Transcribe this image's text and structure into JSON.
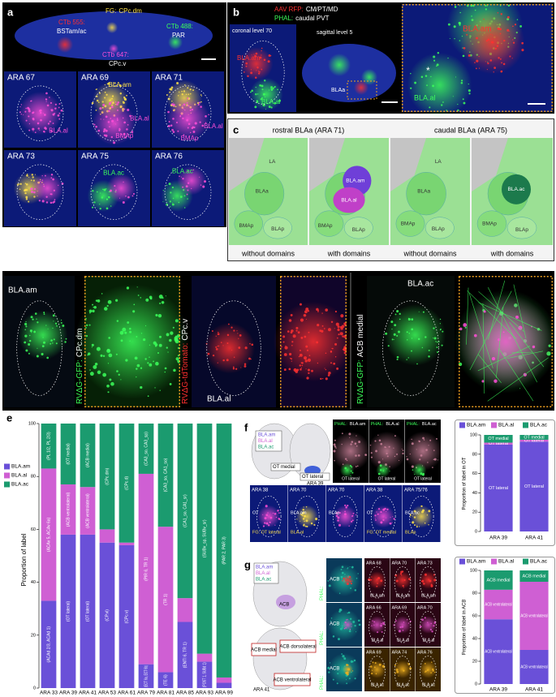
{
  "figure": {
    "a": {
      "letter": "a",
      "overview": [
        {
          "tracer": "CTb 555:",
          "target": "BSTam/ac"
        },
        {
          "tracer": "FG:",
          "target": "CPc.dm"
        },
        {
          "tracer": "CTb 488:",
          "target": "PAR"
        },
        {
          "tracer": "CTb 647:",
          "target": "CPc.v"
        }
      ],
      "tiles": [
        {
          "title": "ARA 67",
          "labels": [
            "BLA.al"
          ]
        },
        {
          "title": "ARA 69",
          "labels": [
            "BLA.am",
            "BLA.al",
            "BMAp"
          ]
        },
        {
          "title": "ARA 71",
          "labels": [
            "BLA.al",
            "BMAp"
          ]
        },
        {
          "title": "ARA 73",
          "labels": []
        },
        {
          "title": "ARA 75",
          "labels": [
            "BLA.ac"
          ]
        },
        {
          "title": "ARA 76",
          "labels": [
            "BLA.ac"
          ]
        }
      ]
    },
    "b": {
      "letter": "b",
      "legend": [
        {
          "tracer": "AAV RFP:",
          "target": "CM/PT/MD"
        },
        {
          "tracer": "PHAL:",
          "target": "caudal PVT"
        }
      ],
      "coronal": {
        "title": "coronal level 70",
        "labels": [
          "BLA.am",
          "BLA.al"
        ]
      },
      "sagittal": {
        "title": "sagittal level 5",
        "labels": [
          "BLAa"
        ]
      },
      "zoom": {
        "labels": [
          "BLA.am",
          "*",
          "BLA.al"
        ]
      }
    },
    "c": {
      "letter": "c",
      "groups": [
        {
          "title": "rostral BLAa (ARA 71)",
          "panels": [
            {
              "caption": "without domains",
              "labels": [
                "LA",
                "BLAa",
                "BMAp",
                "BLAp"
              ]
            },
            {
              "caption": "with domains",
              "labels": [
                "BLA.am",
                "BLA.al",
                "BMAp",
                "BLAp"
              ]
            }
          ]
        },
        {
          "title": "caudal BLAa (ARA 75)",
          "panels": [
            {
              "caption": "without domains",
              "labels": [
                "LA",
                "BLAa",
                "BMAp",
                "BLAp"
              ]
            },
            {
              "caption": "with domains",
              "labels": [
                "BLA.ac",
                "BMAp",
                "BLAp"
              ]
            }
          ]
        }
      ]
    },
    "d": {
      "letter": "d",
      "views": [
        {
          "tracer": "RVΔG-GFP:",
          "target": "CPc.dm",
          "region": "BLA.am"
        },
        {
          "tracer": "RVΔG-tdTomato:",
          "target": "CPc.v",
          "region": "BLA.al"
        },
        {
          "tracer": "RVΔG-GFP:",
          "target": "ACB medial",
          "region": "BLA.ac"
        }
      ]
    },
    "f": {
      "atlas_labels": [
        "BLA.am",
        "BLA.al",
        "BLA.ac",
        "OT medial",
        "OT lateral",
        "ARA 39"
      ],
      "tiles": [
        {
          "tracer": "PHAL:",
          "target": "BLA.am",
          "label": "OT lateral"
        },
        {
          "tracer": "PHAL:",
          "target": "BLA.al",
          "label": "OT lateral"
        },
        {
          "tracer": "PHAL:",
          "target": "BLA.ac",
          "label": "OT lateral"
        }
      ],
      "bottom": [
        {
          "title": "ARA 38",
          "labels": [
            "OT",
            "FG: OT lateral"
          ]
        },
        {
          "title": "ARA 70",
          "labels": [
            "BLA.am",
            "BLA.al"
          ]
        },
        {
          "title": "ARA 70",
          "labels": [
            "BLAp"
          ]
        },
        {
          "title": "ARA 38",
          "labels": [
            "OT",
            "FG: OT medial"
          ]
        },
        {
          "title": "ARA 75/76",
          "labels": [
            "BLA.ac",
            "BLAp"
          ]
        }
      ]
    },
    "g": {
      "atlas_top": [
        "BLA.am",
        "BLA.al",
        "BLA.ac",
        "ACB"
      ],
      "atlas_bottom": [
        "ACB medial",
        "ACB dorsolateral",
        "ACB ventrolateral",
        "ARA 41"
      ],
      "rows": [
        {
          "tracer": "PHAL:",
          "target": "BLA.am",
          "overview": "ACB",
          "tiles": [
            "ARA 68",
            "ARA 70",
            "ARA 73"
          ],
          "region": "BLA.am"
        },
        {
          "tracer": "PHAL:",
          "target": "BLA.al",
          "overview": "ACB",
          "tiles": [
            "ARA 66",
            "ARA 69",
            "ARA 70"
          ],
          "region": "BLA.al"
        },
        {
          "tracer": "PHAL:",
          "target": "BLA.ac",
          "overview": "ACB",
          "tiles": [
            "ARA 69",
            "ARA 74",
            "ARA 76"
          ],
          "region": "BLA.ac"
        }
      ]
    }
  },
  "chart_data": [
    {
      "type": "bar",
      "stacked": true,
      "letter": "e",
      "ylabel": "Proportion of label",
      "categories": [
        "ARA 33",
        "ARA 39",
        "ARA 41",
        "ARA 53",
        "ARA 61",
        "ARA 79",
        "ARA 81",
        "ARA 85",
        "ARA 93",
        "ARA 99"
      ],
      "ylim": [
        0,
        100
      ],
      "yticks": [
        0,
        20,
        40,
        60,
        80,
        100
      ],
      "legend": "left",
      "series": [
        {
          "name": "BLA.am",
          "color": "#6a50d8",
          "values": [
            33,
            58,
            58,
            55,
            54,
            9,
            6,
            25,
            10,
            2
          ],
          "notes": [
            "(ACAd 2/3, ACAd 1)",
            "(OT lateral)",
            "(OT lateral)",
            "(CP.vl)",
            "(CPc.v)",
            "(ECT 6a, ECT 6b)",
            "(TE 6)",
            "(ENTl 6, TR 1)",
            "(POST 1, SUBd 1)",
            null
          ]
        },
        {
          "name": "BLA.al",
          "color": "#cf5fd3",
          "values": [
            50,
            19,
            18,
            5,
            1,
            72,
            55,
            9,
            3,
            2
          ],
          "notes": [
            "(ACAv 5, ACAv 6a)",
            "(ACB ventrolateral)",
            "(ACB ventrolateral)",
            null,
            null,
            "(PIR 6, TR 1)",
            "(TR 1)",
            null,
            null,
            null
          ]
        },
        {
          "name": "BLA.ac",
          "color": "#1b9b6f",
          "values": [
            17,
            23,
            24,
            40,
            45,
            19,
            39,
            66,
            87,
            96
          ],
          "notes": [
            "(PL 1/2, PL 2/3)",
            "(OT medial)",
            "(ACB medial)",
            "(CPc.dm)",
            "(CPc.d)",
            "(CA3_so, CA3_sp)",
            "(CA3_so, CA1_so)",
            "(CA1_so, CA1_sr)",
            "(SUBv_sp, SUBv_sr)",
            "(PAR 2, PAR 3)"
          ]
        }
      ]
    },
    {
      "type": "bar",
      "stacked": true,
      "letter": "f",
      "ylabel": "Proportion of label in OT",
      "categories": [
        "ARA 39",
        "ARA 41"
      ],
      "ylim": [
        0,
        100
      ],
      "yticks": [
        0,
        20,
        40,
        60,
        80,
        100
      ],
      "legend": "top",
      "series": [
        {
          "name": "BLA.am",
          "color": "#6a50d8",
          "values": [
            90,
            93
          ],
          "notes": [
            "OT lateral",
            "OT lateral"
          ]
        },
        {
          "name": "BLA.al",
          "color": "#cf5fd3",
          "values": [
            2,
            2
          ],
          "notes": [
            "OT lateral",
            "OT lateral"
          ]
        },
        {
          "name": "BLA.ac",
          "color": "#1b9b6f",
          "values": [
            8,
            5
          ],
          "notes": [
            "OT medial",
            "OT medial"
          ]
        }
      ]
    },
    {
      "type": "bar",
      "stacked": true,
      "letter": "g",
      "ylabel": "Proportion of label in ACB",
      "categories": [
        "ARA 39",
        "ARA 41"
      ],
      "ylim": [
        0,
        100
      ],
      "yticks": [
        0,
        20,
        40,
        60,
        80,
        100
      ],
      "legend": "top",
      "series": [
        {
          "name": "BLA.am",
          "color": "#6a50d8",
          "values": [
            57,
            30
          ],
          "notes": [
            "ACB ventrolateral",
            "ACB ventrolateral"
          ]
        },
        {
          "name": "BLA.al",
          "color": "#cf5fd3",
          "values": [
            26,
            60
          ],
          "notes": [
            "ACB ventrolateral",
            "ACB ventrolateral"
          ]
        },
        {
          "name": "BLA.ac",
          "color": "#1b9b6f",
          "values": [
            17,
            10
          ],
          "notes": [
            "ACB medial",
            "ACB medial"
          ]
        }
      ]
    }
  ]
}
